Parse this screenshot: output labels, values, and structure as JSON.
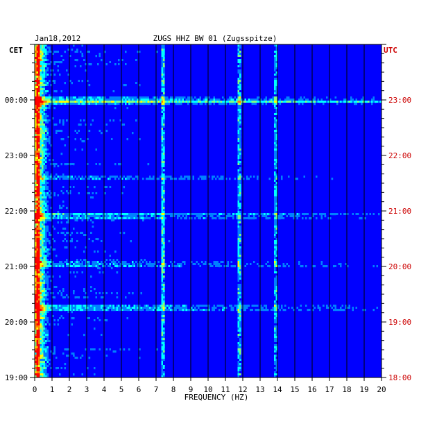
{
  "chart_data": {
    "type": "heatmap",
    "header": {
      "date": "Jan18,2012",
      "title": "ZUGS HHZ BW 01 (Zugsspitze)"
    },
    "left_axis_label": "CET",
    "right_axis_label": "UTC",
    "xlabel": "FREQUENCY (HZ)",
    "x_ticks": [
      0,
      1,
      2,
      3,
      4,
      5,
      6,
      7,
      8,
      9,
      10,
      11,
      12,
      13,
      14,
      15,
      16,
      17,
      18,
      19,
      20
    ],
    "xlim": [
      0,
      20
    ],
    "left_time_ticks": [
      "19:00",
      "20:00",
      "21:00",
      "22:00",
      "23:00",
      "00:00"
    ],
    "right_time_ticks": [
      "18:00",
      "19:00",
      "20:00",
      "21:00",
      "22:00",
      "23:00"
    ],
    "hours_span": 6,
    "grid": true,
    "colormap": [
      "#00008f",
      "#0000ff",
      "#0080ff",
      "#00ffff",
      "#80ff80",
      "#ffff00",
      "#ff8000",
      "#ff0000"
    ],
    "spectral_peaks_hz": [
      0.2,
      7.4,
      11.8,
      13.9
    ],
    "strong_rows_hours_from_bottom": [
      1.25,
      2.05,
      2.9,
      3.6,
      4.95,
      5.0
    ]
  }
}
